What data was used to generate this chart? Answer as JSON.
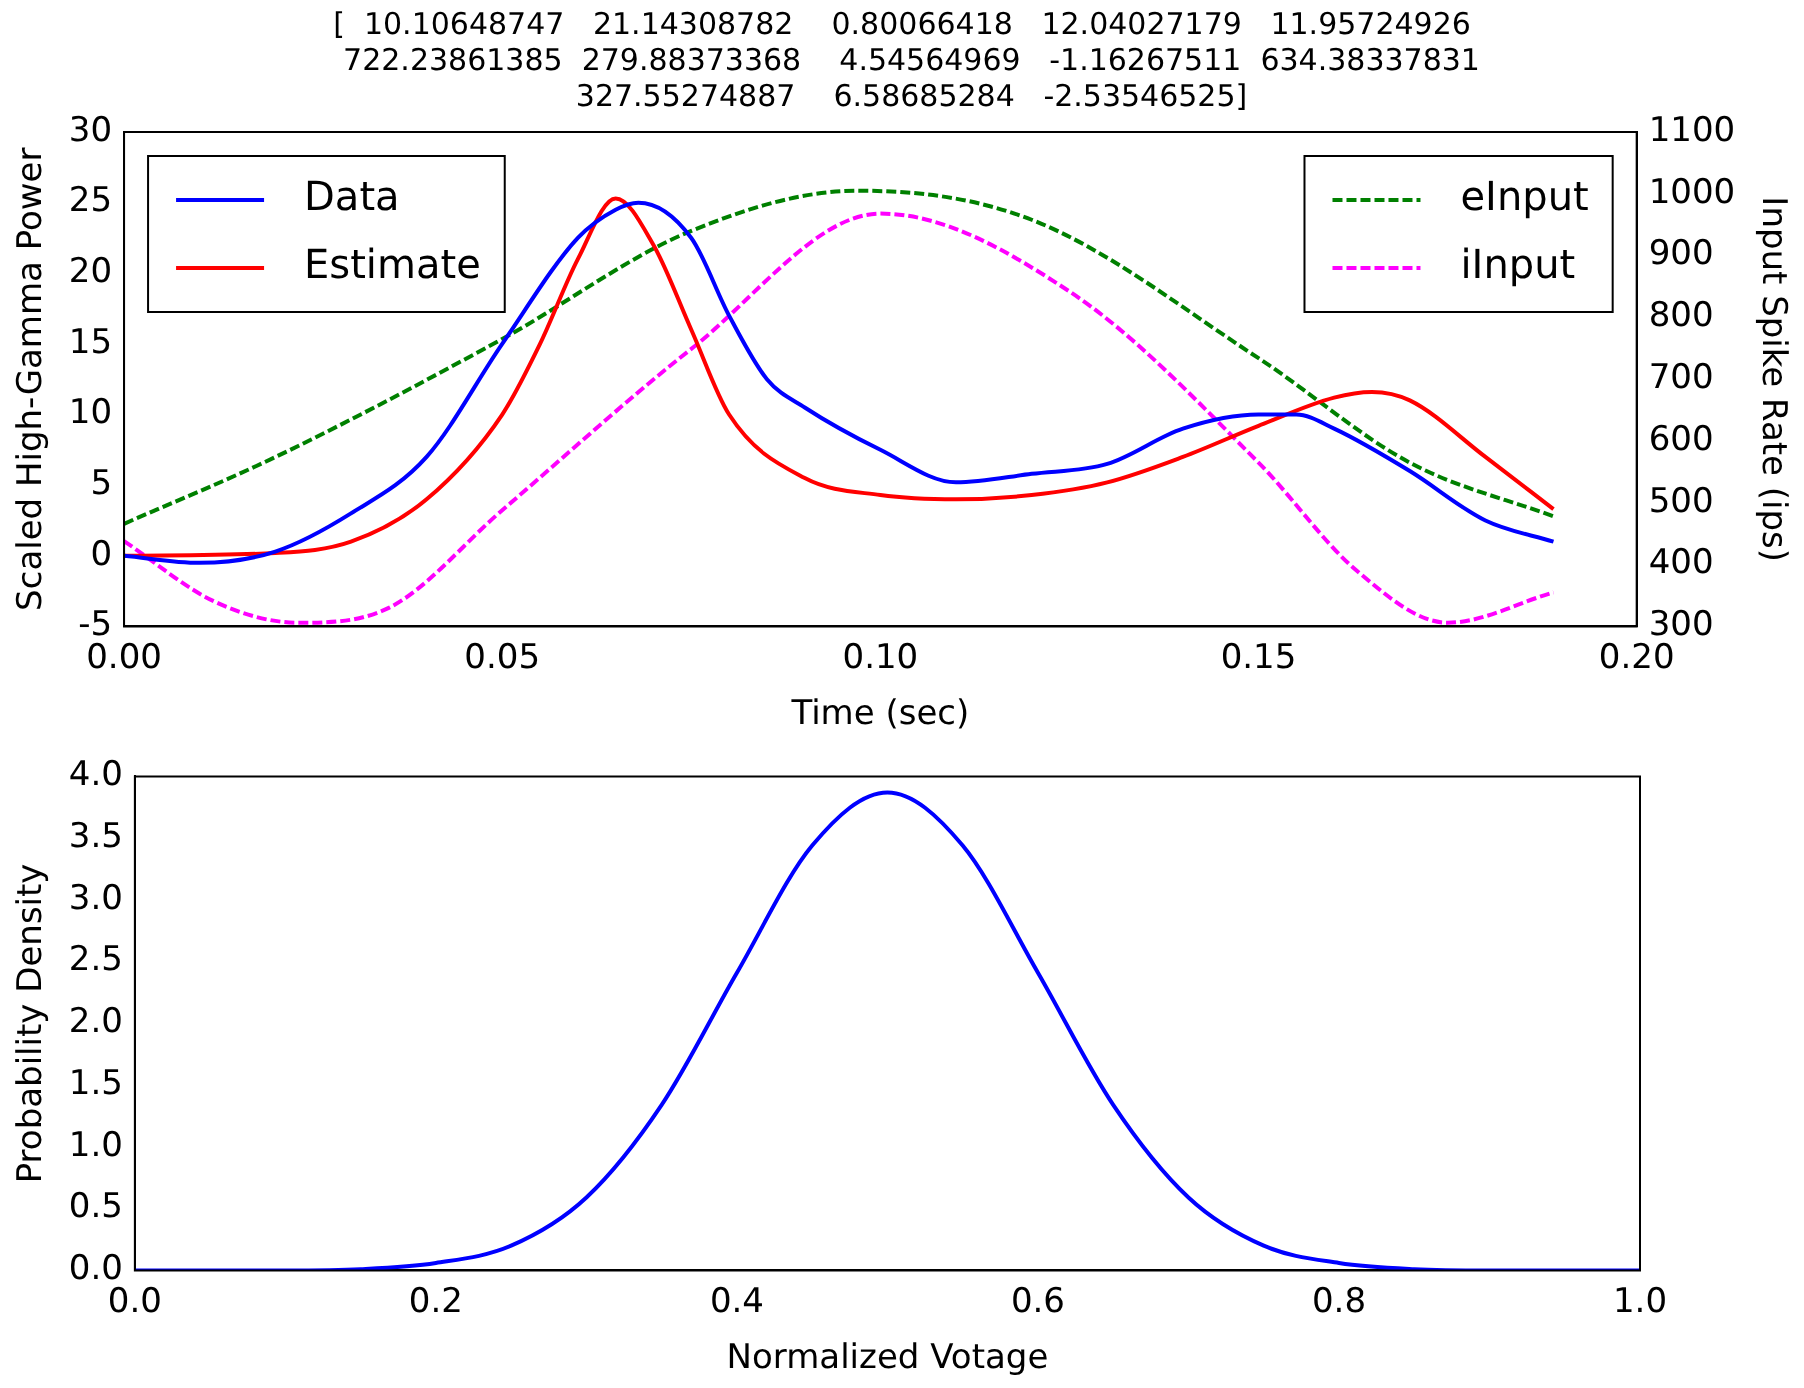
{
  "chart_data": [
    {
      "type": "line",
      "title": "[  10.10648747   21.14308782    0.80066418   12.04027179   11.95724926\n  722.23861385  279.88373368    4.54564969   -1.16267511  634.38337831\n  327.55274887    6.58685284   -2.53546525]",
      "xlabel": "Time (sec)",
      "ylabel": "Scaled High-Gamma Power",
      "y2label": "Input Spike Rate (ips)",
      "xlim": [
        0,
        0.2
      ],
      "xticks": [
        {
          "value": 0,
          "label": "0.00"
        },
        0.05,
        {
          "value": 0.1,
          "label": "0.10"
        },
        0.15,
        {
          "value": 0.2,
          "label": "0.20"
        }
      ],
      "ylim": [
        -5,
        30
      ],
      "yticks": [
        -5,
        0,
        5,
        10,
        15,
        20,
        25,
        30
      ],
      "y2lim": [
        300,
        1100
      ],
      "y2ticks": [
        300,
        400,
        500,
        600,
        700,
        800,
        900,
        1000,
        1100
      ],
      "legend": "top left",
      "grid": false,
      "series": [
        {
          "name": "Data",
          "color": "#0000ff",
          "line_style": "solid",
          "x": [
            0,
            0.01,
            0.02,
            0.03,
            0.04,
            0.05,
            0.06,
            0.065,
            0.068,
            0.075,
            0.08,
            0.085,
            0.09,
            0.1,
            0.11,
            0.12,
            0.13,
            0.14,
            0.15,
            0.155,
            0.16,
            0.17,
            0.18,
            0.189
          ],
          "values": [
            0,
            -0.5,
            0.3,
            3,
            7,
            15,
            22.5,
            24.5,
            25,
            22.5,
            17,
            12.5,
            10.5,
            7.5,
            5.2,
            5.8,
            6.5,
            9,
            10,
            10,
            9,
            6,
            2.5,
            1
          ]
        },
        {
          "name": "Estimate",
          "color": "#ff0000",
          "line_style": "solid",
          "x": [
            0,
            0.02,
            0.03,
            0.04,
            0.05,
            0.055,
            0.06,
            0.065,
            0.07,
            0.075,
            0.08,
            0.09,
            0.1,
            0.11,
            0.12,
            0.13,
            0.14,
            0.15,
            0.16,
            0.165,
            0.17,
            0.18,
            0.189
          ],
          "values": [
            0,
            0.2,
            1,
            4,
            10,
            15,
            21,
            25.3,
            22,
            16,
            10,
            5.5,
            4.3,
            4,
            4.3,
            5.2,
            7,
            9.2,
            11.2,
            11.6,
            11,
            7,
            3.3
          ]
        },
        {
          "name": "eInput",
          "color": "#008000",
          "line_style": "dashed",
          "axis": "y2",
          "x": [
            0,
            0.02,
            0.05,
            0.075,
            0.097,
            0.12,
            0.15,
            0.17,
            0.189
          ],
          "values": [
            466,
            574,
            765,
            940,
            1005,
            958,
            734,
            565,
            478
          ]
        },
        {
          "name": "iInput",
          "color": "#ff00ff",
          "line_style": "dashed",
          "axis": "y2",
          "x": [
            0,
            0.012,
            0.023,
            0.035,
            0.05,
            0.075,
            0.1,
            0.125,
            0.15,
            0.163,
            0.175,
            0.189
          ],
          "values": [
            438,
            340,
            306,
            330,
            488,
            749,
            968,
            842,
            565,
            390,
            306,
            355
          ]
        }
      ]
    },
    {
      "type": "line",
      "xlabel": "Normalized Votage",
      "ylabel": "Probability Density",
      "xlim": [
        0,
        1
      ],
      "xticks": [
        {
          "value": 0,
          "label": "0.0"
        },
        0.2,
        0.4,
        0.6,
        0.8,
        {
          "value": 1,
          "label": "1.0"
        }
      ],
      "ylim": [
        0,
        4
      ],
      "yticks": [
        {
          "value": 0,
          "label": "0.0"
        },
        0.5,
        {
          "value": 1,
          "label": "1.0"
        },
        1.5,
        {
          "value": 2,
          "label": "2.0"
        },
        2.5,
        {
          "value": 3,
          "label": "3.0"
        },
        3.5,
        {
          "value": 4,
          "label": "4.0"
        }
      ],
      "grid": false,
      "series": [
        {
          "color": "#0000ff",
          "x": [
            0,
            0.1,
            0.15,
            0.2,
            0.25,
            0.3,
            0.35,
            0.4,
            0.45,
            0.5,
            0.55,
            0.6,
            0.65,
            0.7,
            0.75,
            0.8,
            0.85,
            0.9,
            1
          ],
          "values": [
            0,
            0,
            0.01,
            0.06,
            0.2,
            0.59,
            1.34,
            2.41,
            3.44,
            3.87,
            3.44,
            2.41,
            1.34,
            0.59,
            0.2,
            0.06,
            0.01,
            0,
            0
          ]
        }
      ]
    }
  ]
}
